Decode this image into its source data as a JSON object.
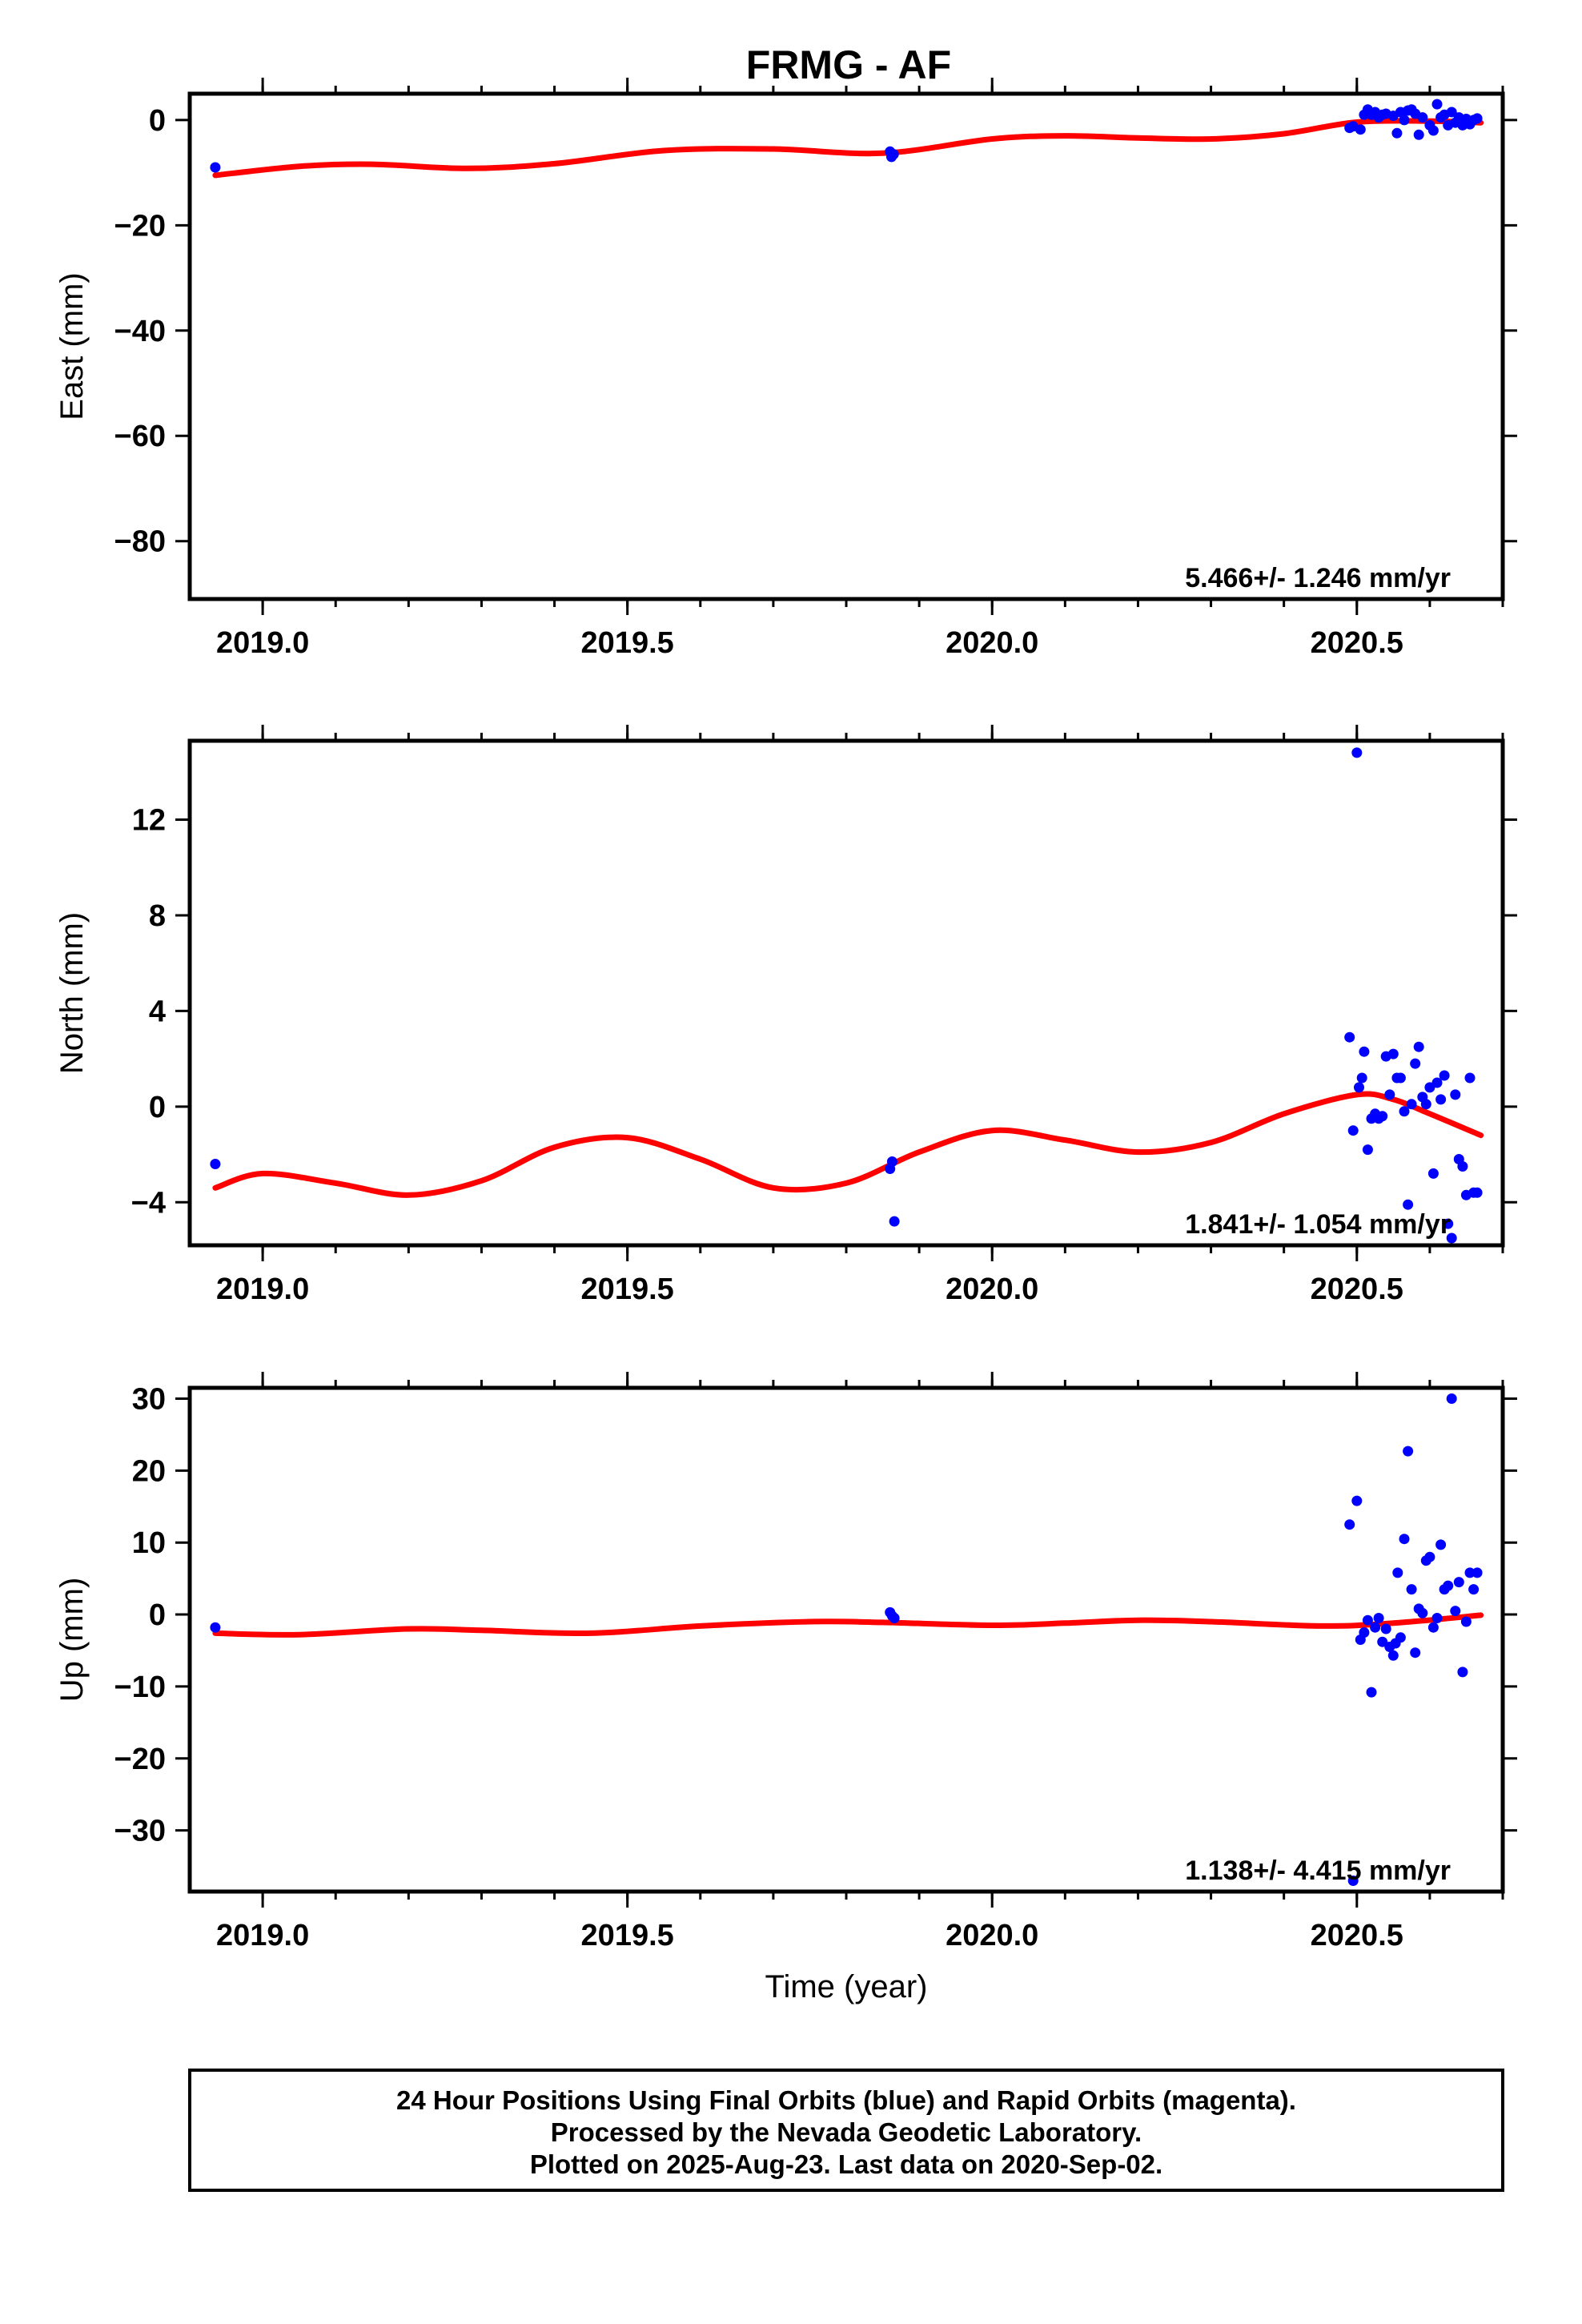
{
  "figure": {
    "title": "FRMG - AF",
    "caption_lines": [
      "24 Hour Positions Using Final Orbits (blue) and Rapid Orbits (magenta).",
      "Processed by the Nevada Geodetic Laboratory.",
      "Plotted on 2025-Aug-23. Last data on 2020-Sep-02."
    ],
    "colors": {
      "final_orbits": "#0000ff",
      "rapid_orbits": "#ff00ff",
      "model": "#ff0000"
    }
  },
  "chart_data": [
    {
      "type": "scatter",
      "panel": "east",
      "title": "",
      "ylabel": "East (mm)",
      "xlabel": "",
      "xlim": [
        2018.9,
        2020.7
      ],
      "ylim": [
        -91,
        5
      ],
      "xticks": [
        "2019.0",
        "2019.5",
        "2020.0",
        "2020.5"
      ],
      "yticks": [
        "0",
        "−20",
        "−40",
        "−60",
        "−80"
      ],
      "ytick_values": [
        0,
        -20,
        -40,
        -60,
        -80
      ],
      "rate": "5.466+/- 1.246 mm/yr",
      "model": {
        "name": "",
        "x": [
          2018.935,
          2019.05,
          2019.15,
          2019.28,
          2019.4,
          2019.55,
          2019.7,
          2019.85,
          2020.0,
          2020.1,
          2020.2,
          2020.3,
          2020.4,
          2020.5,
          2020.6,
          2020.67
        ],
        "y": [
          -10.5,
          -8.8,
          -8.4,
          -9.2,
          -8.3,
          -5.8,
          -5.5,
          -6.3,
          -3.6,
          -3.0,
          -3.4,
          -3.6,
          -2.6,
          -0.4,
          -0.2,
          -0.5
        ]
      },
      "series": [
        {
          "name": "",
          "x": [
            2018.935,
            2019.86,
            2019.862,
            2019.865,
            2020.49,
            2020.495,
            2020.505,
            2020.51,
            2020.515,
            2020.52,
            2020.525,
            2020.53,
            2020.535,
            2020.54,
            2020.55,
            2020.555,
            2020.56,
            2020.565,
            2020.57,
            2020.575,
            2020.58,
            2020.585,
            2020.59,
            2020.6,
            2020.605,
            2020.61,
            2020.615,
            2020.62,
            2020.625,
            2020.63,
            2020.635,
            2020.64,
            2020.645,
            2020.65,
            2020.655,
            2020.66,
            2020.665
          ],
          "y": [
            -9,
            -6,
            -7,
            -6.5,
            -1.5,
            -1.2,
            -1.8,
            1,
            2,
            1,
            1.5,
            0.5,
            1,
            1.2,
            0.8,
            -2.5,
            1.5,
            0,
            1.8,
            2,
            1.2,
            -2.8,
            0.5,
            -1,
            -2,
            3,
            0.5,
            1,
            -1,
            1.5,
            -0.5,
            0.5,
            -1,
            0.2,
            -0.8,
            0,
            0.3
          ]
        }
      ]
    },
    {
      "type": "scatter",
      "panel": "north",
      "title": "",
      "ylabel": "North (mm)",
      "xlabel": "",
      "xlim": [
        2018.9,
        2020.7
      ],
      "ylim": [
        -5.8,
        15.3
      ],
      "xticks": [
        "2019.0",
        "2019.5",
        "2020.0",
        "2020.5"
      ],
      "yticks": [
        "12",
        "8",
        "4",
        "0",
        "−4"
      ],
      "ytick_values": [
        12,
        8,
        4,
        0,
        -4
      ],
      "rate": "1.841+/- 1.054 mm/yr",
      "model": {
        "name": "",
        "x": [
          2018.935,
          2019.0,
          2019.1,
          2019.2,
          2019.3,
          2019.4,
          2019.5,
          2019.6,
          2019.7,
          2019.8,
          2019.9,
          2020.0,
          2020.1,
          2020.2,
          2020.3,
          2020.4,
          2020.5,
          2020.55,
          2020.6,
          2020.67
        ],
        "y": [
          -3.4,
          -2.8,
          -3.2,
          -3.7,
          -3.1,
          -1.7,
          -1.3,
          -2.2,
          -3.4,
          -3.2,
          -1.9,
          -1.0,
          -1.4,
          -1.9,
          -1.5,
          -0.3,
          0.5,
          0.3,
          -0.3,
          -1.2
        ]
      },
      "series": [
        {
          "name": "",
          "x": [
            2018.935,
            2019.86,
            2019.863,
            2019.866,
            2020.49,
            2020.495,
            2020.5,
            2020.503,
            2020.507,
            2020.51,
            2020.515,
            2020.52,
            2020.525,
            2020.53,
            2020.535,
            2020.54,
            2020.545,
            2020.55,
            2020.555,
            2020.56,
            2020.565,
            2020.57,
            2020.575,
            2020.58,
            2020.585,
            2020.59,
            2020.595,
            2020.6,
            2020.605,
            2020.61,
            2020.615,
            2020.62,
            2020.625,
            2020.63,
            2020.635,
            2020.64,
            2020.645,
            2020.65,
            2020.655,
            2020.66,
            2020.665
          ],
          "y": [
            -2.4,
            -2.6,
            -2.3,
            -4.8,
            2.9,
            -1,
            14.8,
            0.8,
            1.2,
            2.3,
            -1.8,
            -0.5,
            -0.3,
            -0.5,
            -0.4,
            2.1,
            0.5,
            2.2,
            1.2,
            1.2,
            -0.2,
            -4.1,
            0.1,
            1.8,
            2.5,
            0.4,
            0.1,
            0.8,
            -2.8,
            1,
            0.3,
            1.3,
            -4.9,
            -5.5,
            0.5,
            -2.2,
            -2.5,
            -3.7,
            1.2,
            -3.6,
            -3.6
          ]
        }
      ]
    },
    {
      "type": "scatter",
      "panel": "up",
      "title": "",
      "ylabel": "Up (mm)",
      "xlabel": "Time (year)",
      "xlim": [
        2018.9,
        2020.7
      ],
      "ylim": [
        -38.5,
        31.5
      ],
      "xticks": [
        "2019.0",
        "2019.5",
        "2020.0",
        "2020.5"
      ],
      "yticks": [
        "30",
        "20",
        "10",
        "0",
        "−10",
        "−20",
        "−30"
      ],
      "ytick_values": [
        30,
        20,
        10,
        0,
        -10,
        -20,
        -30
      ],
      "rate": "1.138+/- 4.415 mm/yr",
      "model": {
        "name": "",
        "x": [
          2018.935,
          2019.05,
          2019.2,
          2019.3,
          2019.45,
          2019.6,
          2019.75,
          2019.85,
          2020.0,
          2020.1,
          2020.2,
          2020.3,
          2020.45,
          2020.55,
          2020.67
        ],
        "y": [
          -2.6,
          -2.8,
          -2.0,
          -2.2,
          -2.6,
          -1.6,
          -1.0,
          -1.1,
          -1.5,
          -1.2,
          -0.8,
          -1.0,
          -1.6,
          -1.2,
          -0.1
        ]
      },
      "series": [
        {
          "name": "",
          "x": [
            2018.935,
            2019.86,
            2019.863,
            2019.866,
            2020.49,
            2020.495,
            2020.5,
            2020.505,
            2020.51,
            2020.515,
            2020.52,
            2020.525,
            2020.53,
            2020.535,
            2020.54,
            2020.545,
            2020.55,
            2020.553,
            2020.556,
            2020.56,
            2020.565,
            2020.57,
            2020.575,
            2020.58,
            2020.585,
            2020.59,
            2020.595,
            2020.6,
            2020.605,
            2020.61,
            2020.615,
            2020.62,
            2020.625,
            2020.63,
            2020.635,
            2020.64,
            2020.645,
            2020.65,
            2020.655,
            2020.66,
            2020.665
          ],
          "y": [
            -1.8,
            0.3,
            -0.2,
            -0.5,
            12.5,
            -37,
            15.8,
            -3.5,
            -2.5,
            -0.8,
            -10.8,
            -1.8,
            -0.5,
            -3.8,
            -2,
            -4.5,
            -5.7,
            -4,
            5.8,
            -3.2,
            10.5,
            22.7,
            3.5,
            -5.3,
            0.8,
            0.2,
            7.5,
            8,
            -1.8,
            -0.5,
            9.7,
            3.5,
            4,
            30,
            0.5,
            4.5,
            -8,
            -1,
            5.8,
            3.5,
            5.8
          ]
        }
      ]
    }
  ]
}
